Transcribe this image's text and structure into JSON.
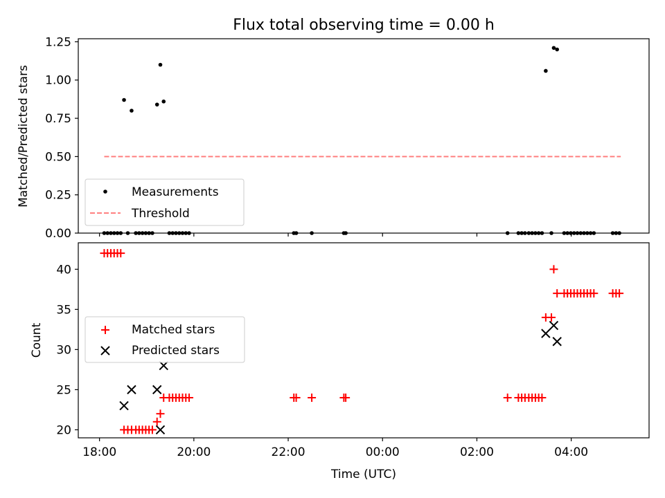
{
  "title": "Flux total observing time = 0.00 h",
  "chart_data": [
    {
      "type": "scatter",
      "ylabel": "Matched/Predicted stars",
      "xlim_hours": [
        17.55,
        29.65
      ],
      "ylim": [
        0,
        1.27
      ],
      "yticks": [
        "0.00",
        "0.25",
        "0.50",
        "0.75",
        "1.00",
        "1.25"
      ],
      "grid": false,
      "legend_placement": "lower-left",
      "series": [
        {
          "name": "Measurements",
          "color": "#000000",
          "marker": "dot",
          "points": [
            [
              18.1,
              0
            ],
            [
              18.17,
              0
            ],
            [
              18.24,
              0
            ],
            [
              18.31,
              0
            ],
            [
              18.38,
              0
            ],
            [
              18.45,
              0
            ],
            [
              18.52,
              0.87
            ],
            [
              18.6,
              0
            ],
            [
              18.68,
              0.8
            ],
            [
              18.77,
              0
            ],
            [
              18.84,
              0
            ],
            [
              18.91,
              0
            ],
            [
              18.98,
              0
            ],
            [
              19.05,
              0
            ],
            [
              19.12,
              0
            ],
            [
              19.22,
              0.84
            ],
            [
              19.29,
              1.1
            ],
            [
              19.36,
              0.86
            ],
            [
              19.48,
              0
            ],
            [
              19.55,
              0
            ],
            [
              19.62,
              0
            ],
            [
              19.69,
              0
            ],
            [
              19.76,
              0
            ],
            [
              19.83,
              0
            ],
            [
              19.9,
              0
            ],
            [
              22.12,
              0
            ],
            [
              22.17,
              0
            ],
            [
              22.5,
              0
            ],
            [
              23.18,
              0
            ],
            [
              23.22,
              0
            ],
            [
              26.65,
              0
            ],
            [
              26.88,
              0
            ],
            [
              26.95,
              0
            ],
            [
              27.02,
              0
            ],
            [
              27.1,
              0
            ],
            [
              27.17,
              0
            ],
            [
              27.24,
              0
            ],
            [
              27.31,
              0
            ],
            [
              27.38,
              0
            ],
            [
              27.46,
              1.06
            ],
            [
              27.58,
              0
            ],
            [
              27.63,
              1.21
            ],
            [
              27.7,
              1.2
            ],
            [
              27.85,
              0
            ],
            [
              27.92,
              0
            ],
            [
              27.99,
              0
            ],
            [
              28.06,
              0
            ],
            [
              28.13,
              0
            ],
            [
              28.2,
              0
            ],
            [
              28.27,
              0
            ],
            [
              28.34,
              0
            ],
            [
              28.41,
              0
            ],
            [
              28.48,
              0
            ],
            [
              28.88,
              0
            ],
            [
              28.95,
              0
            ],
            [
              29.02,
              0
            ]
          ]
        },
        {
          "name": "Threshold",
          "color": "#ff7f7f",
          "style": "dashed",
          "points": [
            [
              18.1,
              0.5
            ],
            [
              29.05,
              0.5
            ]
          ]
        }
      ]
    },
    {
      "type": "scatter",
      "ylabel": "Count",
      "xlabel": "Time (UTC)",
      "xlim_hours": [
        17.55,
        29.65
      ],
      "ylim": [
        19,
        43.3
      ],
      "yticks": [
        "20",
        "25",
        "30",
        "35",
        "40"
      ],
      "xticks": [
        "18:00",
        "20:00",
        "22:00",
        "00:00",
        "02:00",
        "04:00"
      ],
      "grid": false,
      "legend_placement": "center-left",
      "series": [
        {
          "name": "Matched stars",
          "color": "#ff0000",
          "marker": "plus",
          "points": [
            [
              18.1,
              42
            ],
            [
              18.17,
              42
            ],
            [
              18.24,
              42
            ],
            [
              18.31,
              42
            ],
            [
              18.38,
              42
            ],
            [
              18.45,
              42
            ],
            [
              18.52,
              20
            ],
            [
              18.6,
              20
            ],
            [
              18.68,
              20
            ],
            [
              18.77,
              20
            ],
            [
              18.84,
              20
            ],
            [
              18.91,
              20
            ],
            [
              18.98,
              20
            ],
            [
              19.05,
              20
            ],
            [
              19.12,
              20
            ],
            [
              19.22,
              21
            ],
            [
              19.29,
              22
            ],
            [
              19.36,
              24
            ],
            [
              19.48,
              24
            ],
            [
              19.55,
              24
            ],
            [
              19.62,
              24
            ],
            [
              19.69,
              24
            ],
            [
              19.76,
              24
            ],
            [
              19.83,
              24
            ],
            [
              19.9,
              24
            ],
            [
              22.12,
              24
            ],
            [
              22.17,
              24
            ],
            [
              22.5,
              24
            ],
            [
              23.18,
              24
            ],
            [
              23.22,
              24
            ],
            [
              26.65,
              24
            ],
            [
              26.88,
              24
            ],
            [
              26.95,
              24
            ],
            [
              27.02,
              24
            ],
            [
              27.1,
              24
            ],
            [
              27.17,
              24
            ],
            [
              27.24,
              24
            ],
            [
              27.31,
              24
            ],
            [
              27.38,
              24
            ],
            [
              27.46,
              34
            ],
            [
              27.58,
              34
            ],
            [
              27.63,
              40
            ],
            [
              27.7,
              37
            ],
            [
              27.85,
              37
            ],
            [
              27.92,
              37
            ],
            [
              27.99,
              37
            ],
            [
              28.06,
              37
            ],
            [
              28.13,
              37
            ],
            [
              28.2,
              37
            ],
            [
              28.27,
              37
            ],
            [
              28.34,
              37
            ],
            [
              28.41,
              37
            ],
            [
              28.48,
              37
            ],
            [
              28.88,
              37
            ],
            [
              28.95,
              37
            ],
            [
              29.02,
              37
            ]
          ]
        },
        {
          "name": "Predicted stars",
          "color": "#000000",
          "marker": "x",
          "points": [
            [
              18.52,
              23
            ],
            [
              18.68,
              25
            ],
            [
              19.22,
              25
            ],
            [
              19.29,
              20
            ],
            [
              19.36,
              28
            ],
            [
              27.46,
              32
            ],
            [
              27.63,
              33
            ],
            [
              27.7,
              31
            ]
          ]
        }
      ]
    }
  ]
}
